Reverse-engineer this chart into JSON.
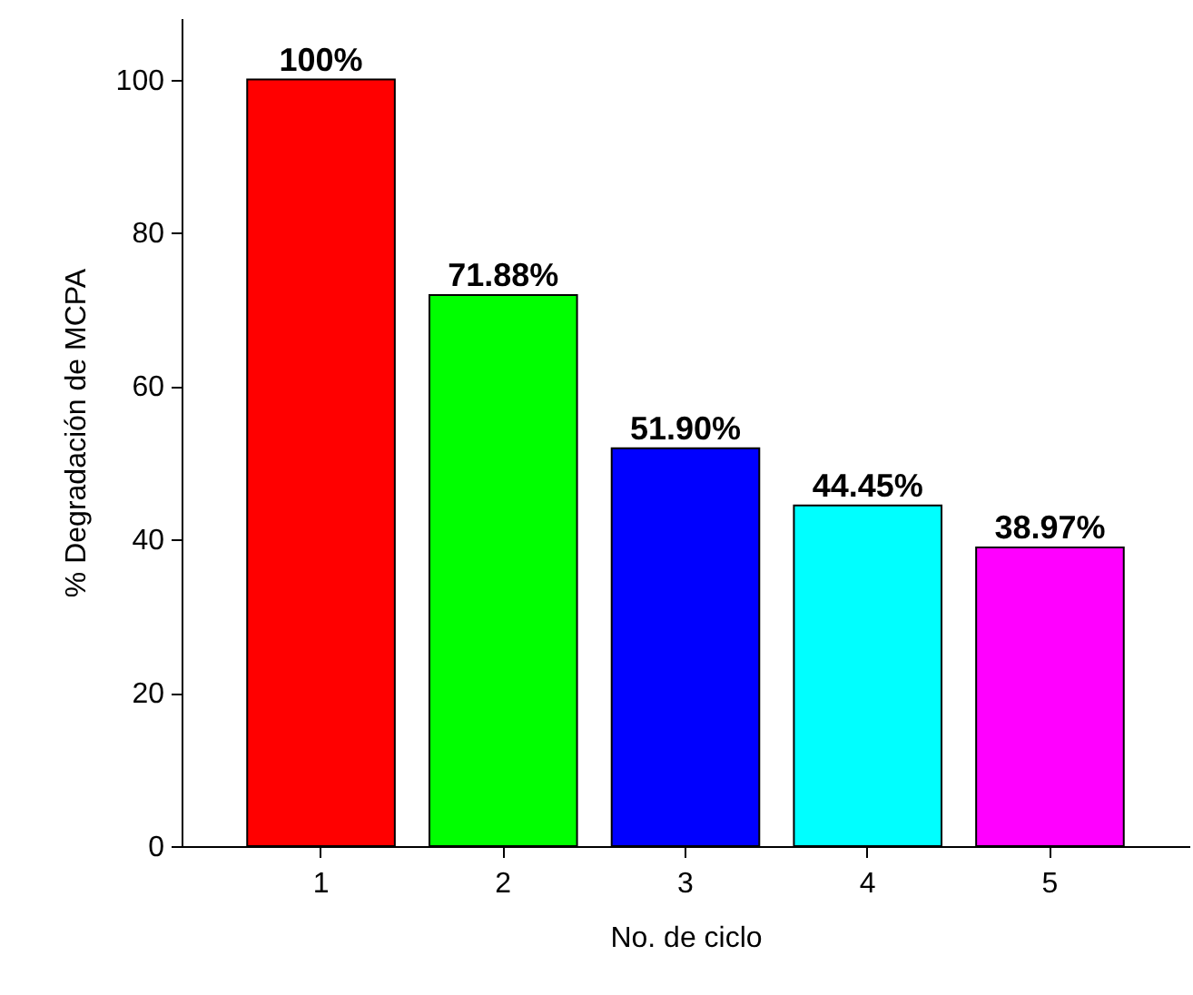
{
  "chart_data": {
    "type": "bar",
    "xlabel": "No. de ciclo",
    "ylabel": "% Degradación de MCPA",
    "categories": [
      "1",
      "2",
      "3",
      "4",
      "5"
    ],
    "values": [
      100,
      71.88,
      51.9,
      44.45,
      38.97
    ],
    "value_labels": [
      "100%",
      "71.88%",
      "51.90%",
      "44.45%",
      "38.97%"
    ],
    "colors": [
      "#ff0000",
      "#00ff00",
      "#0000ff",
      "#00ffff",
      "#ff00ff"
    ],
    "ylim": [
      0,
      108
    ],
    "yticks": [
      0,
      20,
      40,
      60,
      80,
      100
    ],
    "grid": false
  }
}
